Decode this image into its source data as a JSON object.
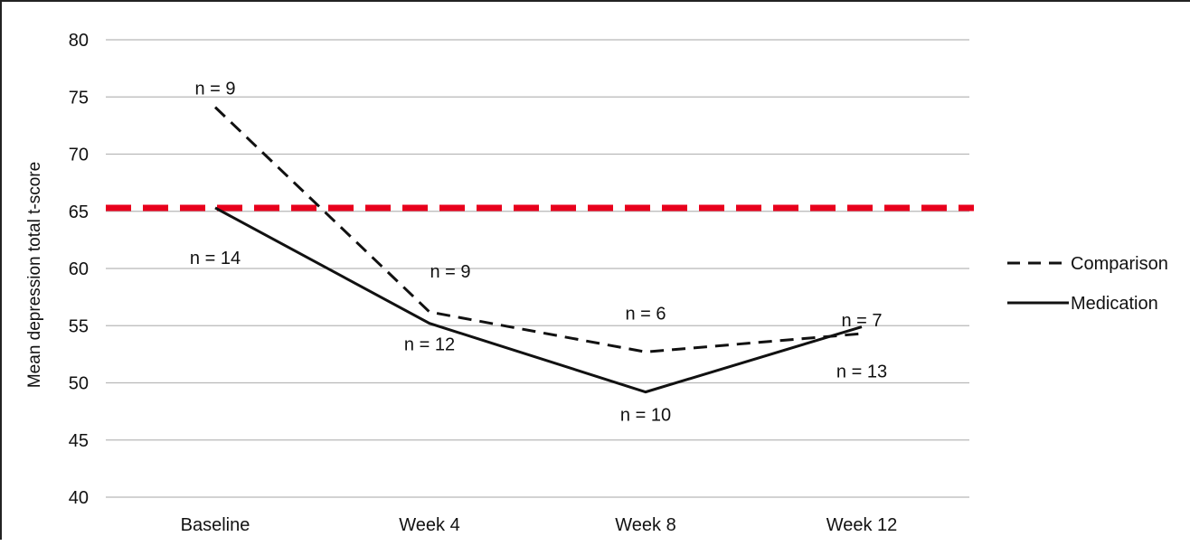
{
  "chart_data": {
    "type": "line",
    "title": "",
    "xlabel": "",
    "ylabel": "Mean depression  total  t-score",
    "categories": [
      "Baseline",
      "Week 4",
      "Week 8",
      "Week 12"
    ],
    "yticks": [
      40,
      45,
      50,
      55,
      60,
      65,
      70,
      75,
      80
    ],
    "ylim": [
      40,
      80
    ],
    "grid": true,
    "legend_position": "right",
    "series": [
      {
        "name": "Comparison",
        "style": "dashed",
        "color": "#111111",
        "values": [
          74.1,
          56.2,
          52.7,
          54.3
        ],
        "n_labels": [
          "n = 9",
          "n = 9",
          "n = 6",
          "n = 7"
        ]
      },
      {
        "name": "Medication",
        "style": "solid",
        "color": "#111111",
        "values": [
          65.3,
          55.2,
          49.2,
          54.9
        ],
        "n_labels": [
          "n = 14",
          "n = 12",
          "n = 10",
          "n = 13"
        ]
      }
    ],
    "reference_line": {
      "value": 65.3,
      "color": "#e8001c",
      "style": "dashed"
    }
  }
}
